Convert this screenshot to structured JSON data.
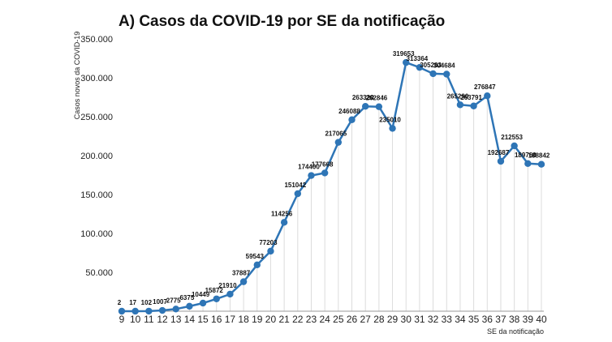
{
  "chart_data": {
    "type": "line",
    "title": "A) Casos da COVID-19 por SE da notificação",
    "xlabel": "SE da notificação",
    "ylabel": "Casos novos da COVID-19",
    "ylim": [
      0,
      350000
    ],
    "yticks": [
      {
        "value": 50000,
        "label": "50.000"
      },
      {
        "value": 100000,
        "label": "100.000"
      },
      {
        "value": 150000,
        "label": "150.000"
      },
      {
        "value": 200000,
        "label": "200.000"
      },
      {
        "value": 250000,
        "label": "250.000"
      },
      {
        "value": 300000,
        "label": "300.000"
      },
      {
        "value": 350000,
        "label": "350.000"
      }
    ],
    "x": [
      9,
      10,
      11,
      12,
      13,
      14,
      15,
      16,
      17,
      18,
      19,
      20,
      21,
      22,
      23,
      24,
      25,
      26,
      27,
      28,
      29,
      30,
      31,
      32,
      33,
      34,
      35,
      36,
      37,
      38,
      39,
      40
    ],
    "series": [
      {
        "color": "#2e75b6",
        "values": [
          2,
          17,
          102,
          1007,
          2775,
          6375,
          10449,
          15872,
          21910,
          37887,
          59543,
          77203,
          114256,
          151042,
          174400,
          177668,
          217065,
          246088,
          263320,
          262846,
          235010,
          319653,
          313364,
          305263,
          304684,
          265290,
          263791,
          276847,
          192687,
          212553,
          189760,
          188842
        ],
        "labels": [
          "2",
          "17",
          "102",
          "1007",
          "2775",
          "6375",
          "10449",
          "15872",
          "21910",
          "37887",
          "59543",
          "77203",
          "114256",
          "151042",
          "174400",
          "177668",
          "217065",
          "246088",
          "263320",
          "262846",
          "235010",
          "319653",
          "313364",
          "305263",
          "304684",
          "265290",
          "263791",
          "276847",
          "192687",
          "212553",
          "189760",
          "188842"
        ]
      }
    ]
  }
}
